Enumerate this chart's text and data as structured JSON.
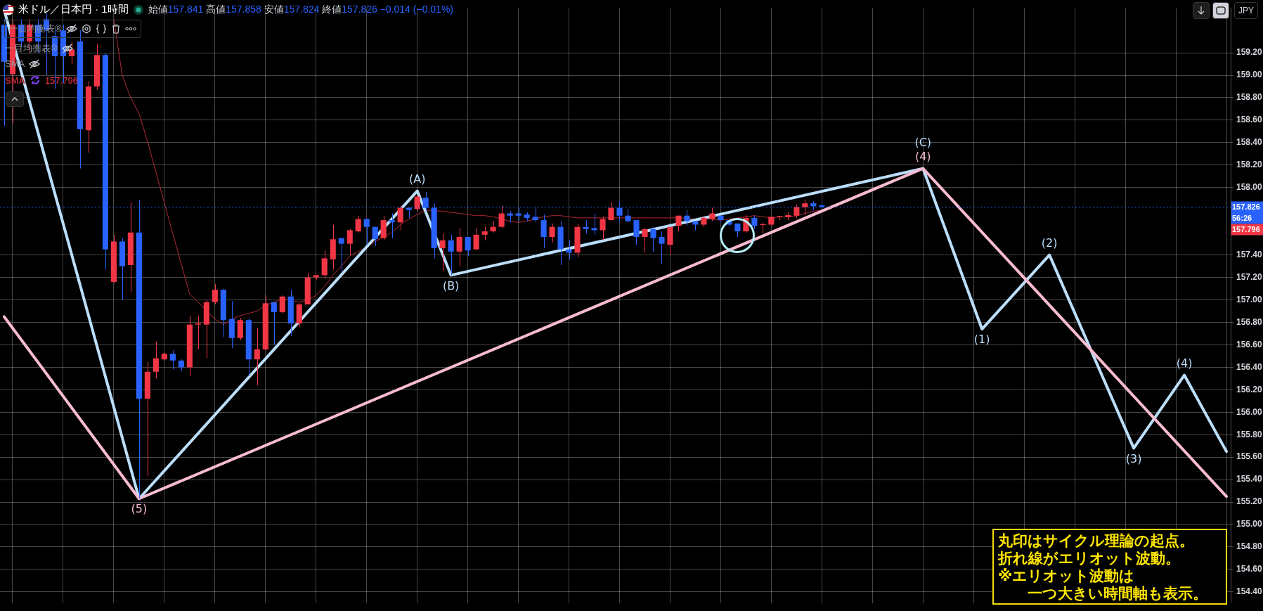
{
  "chart_data": {
    "type": "candlestick",
    "title": "米ドル／日本円 · 1時間",
    "categories": [
      null,
      null,
      null,
      null,
      null,
      null,
      null,
      null,
      null,
      null,
      null,
      null,
      null,
      null,
      null,
      null,
      null,
      null,
      null,
      null,
      null,
      null,
      null,
      null,
      null,
      null,
      null,
      null,
      null,
      null,
      null,
      null,
      null,
      null,
      null,
      null,
      null,
      null,
      null,
      null,
      null,
      null,
      null,
      null,
      null,
      null,
      null,
      null,
      null,
      null,
      null,
      null,
      null,
      null,
      null,
      null,
      null,
      null,
      null,
      null,
      null,
      null,
      null,
      null,
      null,
      null,
      null,
      null,
      null,
      null,
      null,
      null,
      null,
      null,
      null,
      null,
      null,
      null,
      null,
      null,
      null,
      null,
      null,
      null,
      null,
      null,
      null,
      null,
      null,
      null,
      null,
      null,
      null,
      null,
      null,
      null,
      null,
      null,
      null,
      null,
      null,
      null,
      null,
      null,
      null,
      null,
      null,
      null,
      null,
      null,
      null,
      null,
      null,
      null,
      null,
      null,
      null,
      null,
      null,
      null,
      null,
      null,
      null,
      null,
      null,
      null,
      null,
      null,
      null,
      null,
      null,
      null,
      null,
      null,
      null,
      null,
      null,
      null,
      null,
      null,
      null,
      null,
      null,
      null,
      null,
      null
    ],
    "ohlc": [
      [
        159.45,
        159.5,
        158.55,
        159.12
      ],
      [
        159.01,
        159.5,
        158.57,
        159.45
      ],
      [
        159.45,
        159.5,
        159.25,
        159.3
      ],
      [
        159.3,
        159.5,
        159.2,
        159.45
      ],
      [
        159.45,
        159.5,
        159.2,
        159.3
      ],
      [
        159.5,
        159.55,
        159.0,
        159.4
      ],
      [
        159.35,
        159.4,
        158.88,
        159.17
      ],
      [
        159.4,
        159.45,
        158.93,
        159.17
      ],
      [
        159.17,
        159.3,
        159.1,
        159.23
      ],
      [
        159.3,
        159.4,
        158.17,
        158.52
      ],
      [
        158.51,
        158.95,
        158.31,
        158.9
      ],
      [
        158.9,
        159.28,
        158.87,
        159.18
      ],
      [
        159.18,
        159.2,
        157.27,
        157.45
      ],
      [
        157.16,
        157.58,
        157.15,
        157.52
      ],
      [
        157.52,
        157.55,
        157.0,
        157.3
      ],
      [
        157.31,
        157.87,
        157.07,
        157.6
      ],
      [
        157.6,
        157.89,
        155.23,
        156.12
      ],
      [
        156.12,
        156.45,
        155.43,
        156.36
      ],
      [
        156.36,
        156.63,
        156.3,
        156.48
      ],
      [
        156.47,
        156.53,
        156.46,
        156.52
      ],
      [
        156.52,
        156.55,
        156.38,
        156.46
      ],
      [
        156.46,
        156.47,
        156.37,
        156.4
      ],
      [
        156.4,
        156.86,
        156.32,
        156.78
      ],
      [
        156.78,
        156.86,
        156.56,
        156.79
      ],
      [
        156.78,
        157.0,
        156.48,
        156.98
      ],
      [
        156.98,
        157.14,
        156.96,
        157.09
      ],
      [
        157.09,
        157.1,
        156.67,
        156.82
      ],
      [
        156.83,
        156.99,
        156.57,
        156.66
      ],
      [
        156.66,
        156.84,
        156.64,
        156.82
      ],
      [
        156.82,
        156.84,
        156.32,
        156.47
      ],
      [
        156.47,
        156.75,
        156.24,
        156.56
      ],
      [
        156.56,
        157.04,
        156.55,
        156.97
      ],
      [
        156.98,
        156.98,
        156.6,
        156.89
      ],
      [
        156.89,
        157.04,
        156.88,
        157.03
      ],
      [
        157.03,
        157.09,
        156.68,
        156.79
      ],
      [
        156.79,
        156.97,
        156.76,
        156.96
      ],
      [
        156.96,
        157.24,
        156.96,
        157.2
      ],
      [
        157.2,
        157.22,
        157.18,
        157.22
      ],
      [
        157.22,
        157.44,
        157.19,
        157.37
      ],
      [
        157.36,
        157.67,
        157.27,
        157.54
      ],
      [
        157.55,
        157.55,
        157.25,
        157.5
      ],
      [
        157.5,
        157.63,
        157.4,
        157.62
      ],
      [
        157.61,
        157.75,
        157.6,
        157.72
      ],
      [
        157.72,
        157.72,
        157.49,
        157.65
      ],
      [
        157.65,
        157.65,
        157.48,
        157.54
      ],
      [
        157.55,
        157.75,
        157.53,
        157.71
      ],
      [
        157.71,
        157.77,
        157.55,
        157.69
      ],
      [
        157.69,
        157.84,
        157.62,
        157.82
      ],
      [
        157.82,
        157.82,
        157.73,
        157.8
      ],
      [
        157.81,
        157.93,
        157.79,
        157.92
      ],
      [
        157.91,
        157.96,
        157.8,
        157.82
      ],
      [
        157.82,
        157.86,
        157.37,
        157.46
      ],
      [
        157.46,
        157.59,
        157.26,
        157.53
      ],
      [
        157.53,
        157.58,
        157.22,
        157.43
      ],
      [
        157.43,
        157.64,
        157.3,
        157.56
      ],
      [
        157.56,
        157.56,
        157.39,
        157.44
      ],
      [
        157.45,
        157.64,
        157.44,
        157.58
      ],
      [
        157.58,
        157.65,
        157.53,
        157.61
      ],
      [
        157.61,
        157.7,
        157.6,
        157.65
      ],
      [
        157.65,
        157.84,
        157.64,
        157.77
      ],
      [
        157.77,
        157.79,
        157.69,
        157.75
      ],
      [
        157.77,
        157.82,
        157.7,
        157.75
      ],
      [
        157.76,
        157.78,
        157.7,
        157.73
      ],
      [
        157.74,
        157.82,
        157.69,
        157.71
      ],
      [
        157.71,
        157.76,
        157.46,
        157.56
      ],
      [
        157.56,
        157.68,
        157.51,
        157.65
      ],
      [
        157.65,
        157.7,
        157.31,
        157.45
      ],
      [
        157.45,
        157.53,
        157.36,
        157.42
      ],
      [
        157.42,
        157.68,
        157.38,
        157.65
      ],
      [
        157.65,
        157.71,
        157.59,
        157.63
      ],
      [
        157.64,
        157.77,
        157.58,
        157.62
      ],
      [
        157.62,
        157.74,
        157.53,
        157.72
      ],
      [
        157.71,
        157.87,
        157.71,
        157.82
      ],
      [
        157.82,
        157.87,
        157.7,
        157.75
      ],
      [
        157.75,
        157.81,
        157.69,
        157.7
      ],
      [
        157.71,
        157.71,
        157.49,
        157.56
      ],
      [
        157.56,
        157.64,
        157.42,
        157.63
      ],
      [
        157.63,
        157.65,
        157.43,
        157.55
      ],
      [
        157.56,
        157.61,
        157.32,
        157.5
      ],
      [
        157.49,
        157.65,
        157.41,
        157.65
      ],
      [
        157.66,
        157.75,
        157.61,
        157.75
      ],
      [
        157.75,
        157.8,
        157.66,
        157.7
      ],
      [
        157.7,
        157.7,
        157.62,
        157.67
      ],
      [
        157.67,
        157.75,
        157.65,
        157.73
      ],
      [
        157.72,
        157.82,
        157.7,
        157.77
      ],
      [
        157.75,
        157.75,
        157.69,
        157.71
      ],
      [
        157.71,
        157.71,
        157.66,
        157.67
      ],
      [
        157.68,
        157.68,
        157.56,
        157.61
      ],
      [
        157.61,
        157.76,
        157.6,
        157.73
      ],
      [
        157.73,
        157.75,
        157.63,
        157.66
      ],
      [
        157.666,
        157.69,
        157.59,
        157.674
      ],
      [
        157.67,
        157.74,
        157.66,
        157.74
      ],
      [
        157.74,
        157.75,
        157.71,
        157.744
      ],
      [
        157.736,
        157.78,
        157.71,
        157.754
      ],
      [
        157.75,
        157.85,
        157.73,
        157.826
      ],
      [
        157.824,
        157.896,
        157.76,
        157.86
      ],
      [
        157.86,
        157.88,
        157.8,
        157.834
      ],
      [
        157.841,
        157.858,
        157.824,
        157.826
      ],
      null,
      null,
      null,
      null,
      null,
      null,
      null,
      null,
      null,
      null,
      null,
      null,
      null,
      null,
      null,
      null,
      null,
      null,
      null,
      null,
      null,
      null,
      null,
      null,
      null,
      null,
      null,
      null,
      null,
      null,
      null,
      null,
      null,
      null,
      null,
      null,
      null,
      null,
      null,
      null,
      null,
      null,
      null,
      null,
      null,
      null,
      null,
      null
    ],
    "colors": [
      "#2962ff",
      "#f23645",
      "#2962ff",
      "#f23645",
      "#2962ff",
      "#2962ff",
      "#2962ff",
      "#2962ff",
      "#f23645",
      "#2962ff",
      "#f23645",
      "#f23645",
      "#2962ff",
      "#f23645",
      "#2962ff",
      "#f23645",
      "#2962ff",
      "#f23645",
      "#f23645",
      "#f23645",
      "#2962ff",
      "#2962ff",
      "#f23645",
      "#f23645",
      "#f23645",
      "#f23645",
      "#2962ff",
      "#2962ff",
      "#f23645",
      "#2962ff",
      "#f23645",
      "#f23645",
      "#2962ff",
      "#f23645",
      "#2962ff",
      "#f23645",
      "#f23645",
      "#f23645",
      "#f23645",
      "#f23645",
      "#2962ff",
      "#f23645",
      "#f23645",
      "#2962ff",
      "#2962ff",
      "#f23645",
      "#2962ff",
      "#f23645",
      "#2962ff",
      "#f23645",
      "#2962ff",
      "#2962ff",
      "#f23645",
      "#2962ff",
      "#f23645",
      "#2962ff",
      "#f23645",
      "#f23645",
      "#f23645",
      "#f23645",
      "#2962ff",
      "#2962ff",
      "#2962ff",
      "#2962ff",
      "#2962ff",
      "#f23645",
      "#2962ff",
      "#2962ff",
      "#f23645",
      "#2962ff",
      "#2962ff",
      "#f23645",
      "#f23645",
      "#2962ff",
      "#2962ff",
      "#2962ff",
      "#f23645",
      "#2962ff",
      "#2962ff",
      "#f23645",
      "#f23645",
      "#2962ff",
      "#2962ff",
      "#f23645",
      "#f23645",
      "#2962ff",
      "#2962ff",
      "#2962ff",
      "#f23645",
      "#2962ff",
      "#f23645",
      "#f23645",
      "#f23645",
      "#f23645",
      "#f23645",
      "#f23645",
      "#2962ff",
      "#2962ff",
      null,
      null,
      null,
      null,
      null,
      null,
      null,
      null,
      null,
      null,
      null,
      null,
      null,
      null,
      null,
      null,
      null,
      null,
      null,
      null,
      null,
      null,
      null,
      null,
      null,
      null,
      null,
      null,
      null,
      null,
      null,
      null,
      null,
      null,
      null,
      null,
      null,
      null,
      null,
      null,
      null,
      null,
      null,
      null,
      null,
      null,
      null,
      null
    ],
    "series": [
      {
        "type": "line",
        "color": "#f8bbd0",
        "values": [
          156.85,
          null,
          null,
          null,
          null,
          null,
          null,
          null,
          null,
          null,
          null,
          null,
          null,
          null,
          null,
          null,
          155.23,
          null,
          null,
          null,
          null,
          null,
          null,
          null,
          null,
          null,
          null,
          null,
          null,
          null,
          null,
          null,
          null,
          null,
          null,
          null,
          null,
          null,
          null,
          null,
          null,
          null,
          null,
          null,
          null,
          null,
          null,
          null,
          null,
          null,
          null,
          null,
          null,
          null,
          null,
          null,
          null,
          null,
          null,
          null,
          null,
          null,
          null,
          null,
          null,
          null,
          null,
          null,
          null,
          null,
          null,
          null,
          null,
          null,
          null,
          null,
          null,
          null,
          null,
          null,
          null,
          null,
          null,
          null,
          null,
          null,
          null,
          null,
          null,
          null,
          null,
          null,
          null,
          null,
          null,
          null,
          null,
          null,
          null,
          null,
          null,
          null,
          null,
          null,
          null,
          null,
          null,
          null,
          null,
          158.17,
          null,
          null,
          null,
          null,
          null,
          null,
          null,
          null,
          null,
          null,
          null,
          null,
          null,
          null,
          null,
          null,
          null,
          null,
          null,
          null,
          null,
          null,
          null,
          null,
          null,
          null,
          null,
          null,
          null,
          null,
          null,
          null,
          null,
          null,
          null,
          155.25
        ]
      },
      {
        "type": "line",
        "color": "#bbdefb",
        "values": [
          159.58,
          null,
          null,
          null,
          null,
          null,
          null,
          null,
          null,
          null,
          null,
          null,
          null,
          null,
          null,
          null,
          155.23,
          null,
          null,
          null,
          null,
          null,
          null,
          null,
          null,
          null,
          null,
          null,
          null,
          null,
          null,
          null,
          null,
          null,
          null,
          null,
          null,
          null,
          null,
          null,
          null,
          null,
          null,
          null,
          null,
          null,
          null,
          null,
          null,
          157.97,
          null,
          null,
          null,
          157.22,
          null,
          null,
          null,
          null,
          null,
          null,
          null,
          null,
          null,
          null,
          null,
          null,
          null,
          null,
          null,
          null,
          null,
          null,
          null,
          null,
          null,
          null,
          null,
          null,
          null,
          null,
          null,
          null,
          null,
          null,
          null,
          null,
          null,
          null,
          null,
          null,
          null,
          null,
          null,
          null,
          null,
          null,
          null,
          null,
          null,
          null,
          null,
          null,
          null,
          null,
          null,
          null,
          null,
          null,
          null,
          158.17,
          null,
          null,
          null,
          null,
          null,
          null,
          156.74,
          null,
          null,
          null,
          null,
          null,
          null,
          null,
          157.4,
          null,
          null,
          null,
          null,
          null,
          null,
          null,
          null,
          null,
          155.68,
          null,
          null,
          null,
          null,
          null,
          156.33,
          null,
          null,
          null,
          null,
          155.65
        ]
      },
      {
        "type": "line",
        "name": "SMA",
        "color": "#b22833",
        "values": [
          null,
          null,
          null,
          null,
          null,
          null,
          null,
          null,
          null,
          null,
          null,
          null,
          null,
          159.5,
          159.0,
          158.8,
          158.66,
          158.41,
          158.14,
          157.86,
          157.59,
          157.32,
          157.05,
          156.98,
          156.9,
          156.83,
          156.78,
          156.83,
          156.86,
          156.88,
          156.9,
          156.95,
          156.98,
          157.01,
          null,
          156.98,
          157.0,
          157.04,
          157.12,
          157.22,
          157.3,
          157.39,
          157.43,
          157.47,
          157.52,
          157.56,
          157.6,
          157.67,
          157.72,
          157.76,
          157.8,
          null,
          157.79,
          157.78,
          157.77,
          157.76,
          157.75,
          157.75,
          157.74,
          157.72,
          157.7,
          157.69,
          157.7,
          null,
          157.74,
          157.75,
          157.75,
          157.74,
          157.73,
          157.73,
          157.73,
          157.73,
          157.73,
          157.73,
          null,
          157.73,
          157.73,
          157.73,
          157.73,
          157.73,
          157.73,
          null,
          157.72,
          157.72,
          157.72,
          157.71,
          null,
          null,
          157.74,
          157.75,
          157.74,
          157.73,
          157.74,
          157.74,
          157.75,
          157.77,
          157.79,
          157.796,
          null,
          null,
          null,
          null,
          null,
          null,
          null,
          null,
          null,
          null,
          null,
          null,
          null,
          null,
          null,
          null,
          null,
          null,
          null,
          null,
          null,
          null,
          null,
          null,
          null,
          null,
          null,
          null,
          null,
          null,
          null,
          null,
          null,
          null,
          null,
          null,
          null,
          null,
          null,
          null,
          null,
          null,
          null,
          null,
          null,
          null,
          null,
          null
        ]
      }
    ],
    "ylim": [
      154.3,
      159.6
    ],
    "yticks": [
      {
        "value": 154.4,
        "label": "154.40"
      },
      {
        "value": 154.6,
        "label": "154.60"
      },
      {
        "value": 154.8,
        "label": "154.80"
      },
      {
        "value": 155.0,
        "label": "155.00"
      },
      {
        "value": 155.2,
        "label": "155.20"
      },
      {
        "value": 155.4,
        "label": "155.40"
      },
      {
        "value": 155.6,
        "label": "155.60"
      },
      {
        "value": 155.8,
        "label": "155.80"
      },
      {
        "value": 156.0,
        "label": "156.00"
      },
      {
        "value": 156.2,
        "label": "156.20"
      },
      {
        "value": 156.4,
        "label": "156.40"
      },
      {
        "value": 156.6,
        "label": "156.60"
      },
      {
        "value": 156.8,
        "label": "156.80"
      },
      {
        "value": 157.0,
        "label": "157.00"
      },
      {
        "value": 157.2,
        "label": "157.20"
      },
      {
        "value": 157.4,
        "label": "157.40"
      },
      {
        "value": 158.0,
        "label": "158.00"
      },
      {
        "value": 158.2,
        "label": "158.20"
      },
      {
        "value": 158.4,
        "label": "158.40"
      },
      {
        "value": 158.6,
        "label": "158.60"
      },
      {
        "value": 158.8,
        "label": "158.80"
      },
      {
        "value": 159.0,
        "label": "159.00"
      },
      {
        "value": 159.2,
        "label": "159.20"
      }
    ],
    "grid": true,
    "ref_lines": [
      {
        "axis": "y",
        "value": 157.826,
        "label": "157.826",
        "color": "#2962ff",
        "line_style": "dotted"
      }
    ],
    "annotations": [
      "始値157.841 高値157.858 安値157.824 終値157.826 −0.014 (−0.01%)",
      "一目均衡表®",
      "一目均衡表®",
      "SMA",
      "JPY",
      "56:26",
      "丸印はサイクル理論の起点。",
      "折れ線がエリオット波動。",
      "※エリオット波動は",
      "一つ大きい時間軸も表示。",
      "157.796",
      {
        "text": "(5)",
        "y": 155.23
      },
      {
        "text": "(A)",
        "y": 157.97
      },
      {
        "text": "(B)",
        "y": 157.22
      },
      {
        "text": "(4)",
        "y": 158.17
      },
      {
        "text": "(C)",
        "y": 158.17
      },
      {
        "text": "(1)",
        "y": 156.74
      },
      {
        "text": "(2)",
        "y": 157.4
      },
      {
        "text": "(3)",
        "y": 155.68
      },
      {
        "text": "(4)",
        "y": 156.33
      }
    ]
  }
}
